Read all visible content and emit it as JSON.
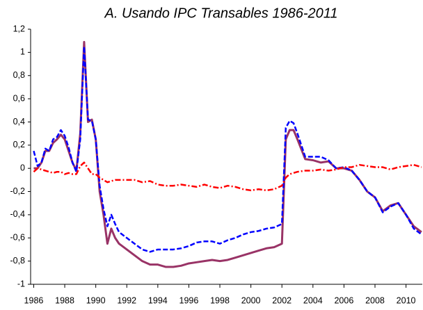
{
  "chart_data": {
    "type": "line",
    "title": "A. Usando IPC Transables 1986-2011",
    "x": [
      1986,
      1986.25,
      1986.5,
      1986.75,
      1987,
      1987.25,
      1987.5,
      1987.75,
      1988,
      1988.25,
      1988.5,
      1988.75,
      1989,
      1989.25,
      1989.5,
      1989.75,
      1990,
      1990.25,
      1990.5,
      1990.75,
      1991,
      1991.25,
      1991.5,
      1992,
      1992.5,
      1993,
      1993.5,
      1994,
      1994.5,
      1995,
      1995.5,
      1996,
      1996.5,
      1997,
      1997.5,
      1998,
      1998.5,
      1999,
      1999.5,
      2000,
      2000.5,
      2001,
      2001.5,
      2002,
      2002.25,
      2002.5,
      2002.75,
      2003,
      2003.5,
      2004,
      2004.5,
      2005,
      2005.5,
      2006,
      2006.5,
      2007,
      2007.5,
      2008,
      2008.5,
      2009,
      2009.5,
      2010,
      2010.5,
      2011
    ],
    "series": [
      {
        "color": "#993366",
        "style": "solid",
        "values": [
          0.0,
          0.0,
          0.05,
          0.15,
          0.15,
          0.22,
          0.25,
          0.29,
          0.25,
          0.15,
          0.05,
          -0.02,
          0.3,
          1.09,
          0.4,
          0.42,
          0.25,
          -0.2,
          -0.4,
          -0.65,
          -0.52,
          -0.6,
          -0.65,
          -0.7,
          -0.75,
          -0.8,
          -0.83,
          -0.83,
          -0.85,
          -0.85,
          -0.84,
          -0.82,
          -0.81,
          -0.8,
          -0.79,
          -0.8,
          -0.79,
          -0.77,
          -0.75,
          -0.73,
          -0.71,
          -0.69,
          -0.68,
          -0.65,
          0.25,
          0.33,
          0.33,
          0.25,
          0.08,
          0.07,
          0.05,
          0.06,
          0.0,
          0.0,
          -0.02,
          -0.1,
          -0.2,
          -0.25,
          -0.37,
          -0.32,
          -0.3,
          -0.4,
          -0.5,
          -0.55
        ]
      },
      {
        "color": "#0000ff",
        "style": "dashed",
        "values": [
          0.15,
          0.02,
          0.05,
          0.17,
          0.15,
          0.25,
          0.27,
          0.33,
          0.28,
          0.18,
          0.05,
          -0.03,
          0.25,
          1.05,
          0.42,
          0.41,
          0.25,
          -0.15,
          -0.35,
          -0.5,
          -0.4,
          -0.48,
          -0.55,
          -0.6,
          -0.65,
          -0.7,
          -0.72,
          -0.7,
          -0.7,
          -0.7,
          -0.69,
          -0.67,
          -0.64,
          -0.63,
          -0.63,
          -0.65,
          -0.62,
          -0.6,
          -0.57,
          -0.55,
          -0.54,
          -0.52,
          -0.51,
          -0.48,
          0.35,
          0.41,
          0.39,
          0.3,
          0.1,
          0.1,
          0.1,
          0.07,
          0.0,
          0.01,
          -0.02,
          -0.1,
          -0.2,
          -0.25,
          -0.38,
          -0.33,
          -0.3,
          -0.4,
          -0.52,
          -0.57
        ]
      },
      {
        "color": "#ff0000",
        "style": "dashdot",
        "values": [
          -0.03,
          0.0,
          -0.01,
          -0.02,
          -0.03,
          -0.04,
          -0.03,
          -0.03,
          -0.05,
          -0.04,
          -0.05,
          -0.05,
          0.02,
          0.05,
          0.0,
          -0.05,
          -0.05,
          -0.08,
          -0.1,
          -0.12,
          -0.11,
          -0.1,
          -0.1,
          -0.1,
          -0.1,
          -0.12,
          -0.11,
          -0.14,
          -0.15,
          -0.15,
          -0.14,
          -0.15,
          -0.16,
          -0.14,
          -0.16,
          -0.17,
          -0.15,
          -0.16,
          -0.18,
          -0.19,
          -0.18,
          -0.19,
          -0.18,
          -0.15,
          -0.08,
          -0.05,
          -0.04,
          -0.03,
          -0.02,
          -0.02,
          -0.01,
          -0.02,
          -0.01,
          0.01,
          0.01,
          0.03,
          0.02,
          0.01,
          0.01,
          -0.01,
          0.01,
          0.02,
          0.03,
          0.01
        ]
      }
    ],
    "xlim": [
      1985.8,
      2011.05
    ],
    "xticks": [
      1986,
      1988,
      1990,
      1992,
      1994,
      1996,
      1998,
      2000,
      2002,
      2004,
      2006,
      2008,
      2010
    ],
    "ylim": [
      -1,
      1.2
    ],
    "yticks": [
      -1,
      {
        "value": -0.8,
        "label": "-0,8"
      },
      {
        "value": -0.6,
        "label": "-0,6"
      },
      {
        "value": -0.4,
        "label": "-0,4"
      },
      {
        "value": -0.2,
        "label": "-0,2"
      },
      0,
      {
        "value": 0.2,
        "label": "0,2"
      },
      {
        "value": 0.4,
        "label": "0,4"
      },
      {
        "value": 0.6,
        "label": "0,6"
      },
      {
        "value": 0.8,
        "label": "0,8"
      },
      1,
      {
        "value": 1.2,
        "label": "1,2"
      }
    ],
    "grid": false
  }
}
